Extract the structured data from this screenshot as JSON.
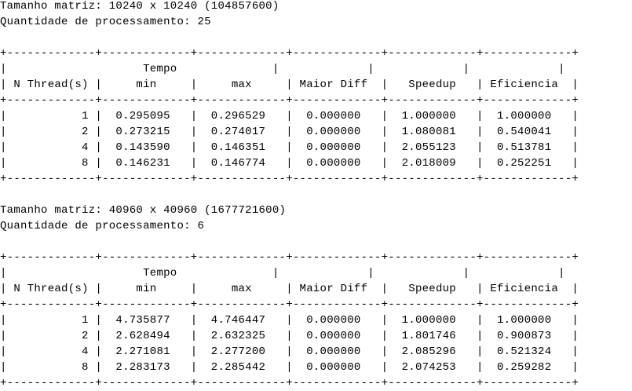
{
  "terminal": {
    "block1": {
      "matrix": "Tamanho matriz: 10240 x 10240 (104857600)",
      "processing": "Quantidade de processamento: 25",
      "table": {
        "border": "+-------------+-------------+-------------+-------------+-------------+-------------+",
        "header_blank": "|             |             |             |             |             |             |",
        "header_top": "|                    Tempo              |             |             |             |",
        "header_main": "| N Thread(s) |     min     |     max     | Maior Diff  |   Speedup   | Eficiencia  |",
        "rows": [
          "|           1 |  0.295095   |  0.296529   |  0.000000   |  1.000000   |  1.000000   |",
          "|           2 |  0.273215   |  0.274017   |  0.000000   |  1.080081   |  0.540041   |",
          "|           4 |  0.143590   |  0.146351   |  0.000000   |  2.055123   |  0.513781   |",
          "|           8 |  0.146231   |  0.146774   |  0.000000   |  2.018009   |  0.252251   |"
        ]
      }
    },
    "block2": {
      "matrix": "Tamanho matriz: 40960 x 40960 (1677721600)",
      "processing": "Quantidade de processamento: 6",
      "table": {
        "border": "+-------------+-------------+-------------+-------------+-------------+-------------+",
        "header_blank": "|             |             |             |             |             |             |",
        "header_top": "|                    Tempo              |             |             |             |",
        "header_main": "| N Thread(s) |     min     |     max     | Maior Diff  |   Speedup   | Eficiencia  |",
        "rows": [
          "|           1 |  4.735877   |  4.746447   |  0.000000   |  1.000000   |  1.000000   |",
          "|           2 |  2.628494   |  2.632325   |  0.000000   |  1.801746   |  0.900873   |",
          "|           4 |  2.271081   |  2.277200   |  0.000000   |  2.085296   |  0.521324   |",
          "|           8 |  2.283173   |  2.285442   |  0.000000   |  2.074253   |  0.259282   |"
        ]
      }
    }
  }
}
